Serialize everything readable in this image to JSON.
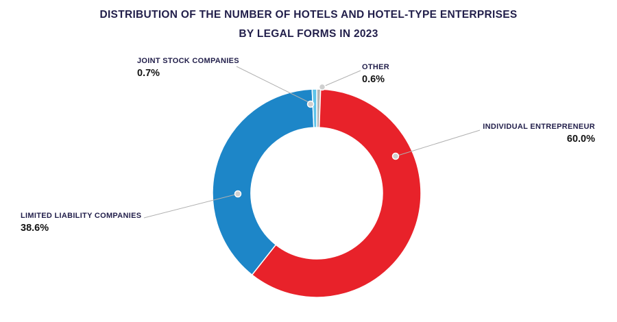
{
  "title": {
    "line1": "DISTRIBUTION OF THE NUMBER OF HOTELS AND HOTEL-TYPE ENTERPRISES",
    "line2": "BY LEGAL FORMS IN 2023"
  },
  "chart_data": {
    "type": "pie",
    "variant": "donut",
    "title": "DISTRIBUTION OF THE NUMBER OF HOTELS AND HOTEL-TYPE ENTERPRISES BY LEGAL FORMS IN 2023",
    "start_angle_deg": 0,
    "direction": "clockwise",
    "legend_position": "callout-labels",
    "slices": [
      {
        "label": "OTHER",
        "value": 0.6,
        "color": "#b5b5b5"
      },
      {
        "label": "INDIVIDUAL ENTREPRENEUR",
        "value": 60.0,
        "color": "#e8222a"
      },
      {
        "label": "LIMITED LIABILITY COMPANIES",
        "value": 38.6,
        "color": "#1d86c8"
      },
      {
        "label": "JOINT STOCK COMPANIES",
        "value": 0.7,
        "color": "#5fc3ea"
      }
    ]
  },
  "labels": {
    "joint": {
      "name": "JOINT STOCK COMPANIES",
      "value": "0.7%"
    },
    "other": {
      "name": "OTHER",
      "value": "0.6%"
    },
    "individual": {
      "name": "INDIVIDUAL ENTREPRENEUR",
      "value": "60.0%"
    },
    "limited": {
      "name": "LIMITED LIABILITY COMPANIES",
      "value": "38.6%"
    }
  },
  "colors": {
    "title": "#211e4a",
    "leader_line": "#b0b0b0",
    "marker_fill": "#cfcfcf"
  }
}
